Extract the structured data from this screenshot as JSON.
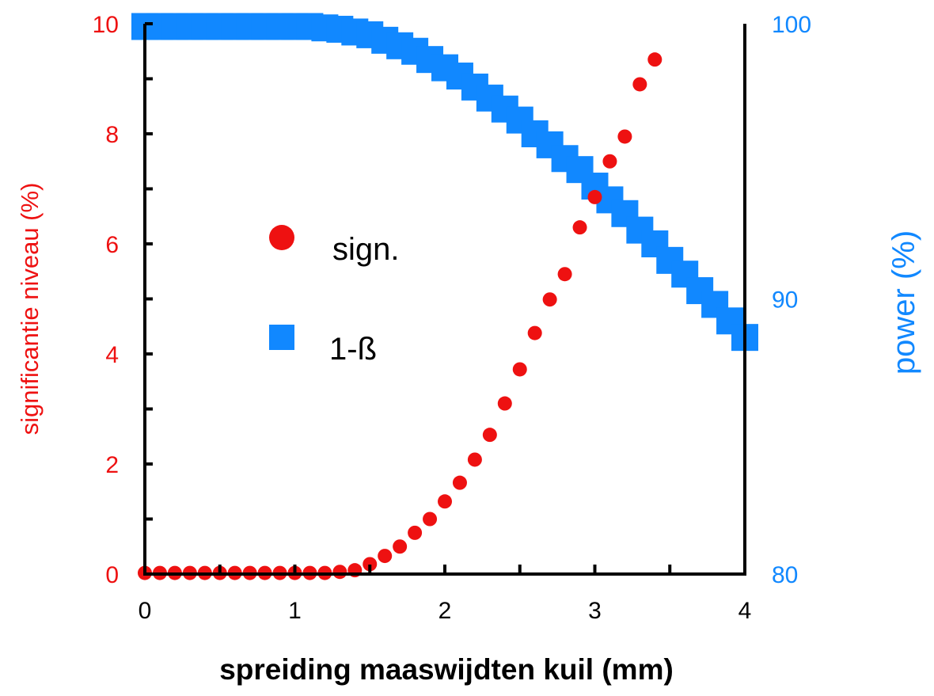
{
  "chart_data": {
    "type": "scatter",
    "xlabel": "spreiding maaswijdten kuil (mm)",
    "ylabel": "significantie niveau (%)",
    "y2label": "power (%)",
    "xlim": [
      0,
      4
    ],
    "ylim": [
      0,
      10
    ],
    "y2lim": [
      80,
      100
    ],
    "x_ticks": [
      "0",
      "1",
      "2",
      "3",
      "4"
    ],
    "y_ticks": [
      "0",
      "2",
      "4",
      "6",
      "8",
      "10"
    ],
    "y2_ticks": [
      "80",
      "90",
      "100"
    ],
    "grid": false,
    "legend_position": "center-left",
    "colors": {
      "sign": "#ee1111",
      "power": "#1188ff",
      "axis": "#000000"
    },
    "series": [
      {
        "name": "sign.",
        "axis": "left",
        "marker": "circle",
        "x": [
          0,
          0.1,
          0.2,
          0.3,
          0.4,
          0.5,
          0.6,
          0.7,
          0.8,
          0.9,
          1.0,
          1.1,
          1.2,
          1.3,
          1.4,
          1.5,
          1.6,
          1.7,
          1.8,
          1.9,
          2.0,
          2.1,
          2.2,
          2.3,
          2.4,
          2.5,
          2.6,
          2.7,
          2.8,
          2.9,
          3.0,
          3.1,
          3.2,
          3.3,
          3.4
        ],
        "values": [
          0.02,
          0.02,
          0.02,
          0.02,
          0.02,
          0.02,
          0.02,
          0.02,
          0.02,
          0.02,
          0.02,
          0.02,
          0.02,
          0.04,
          0.07,
          0.18,
          0.33,
          0.5,
          0.75,
          1.0,
          1.32,
          1.66,
          2.08,
          2.53,
          3.1,
          3.72,
          4.38,
          4.99,
          5.45,
          6.3,
          6.85,
          7.5,
          7.95,
          8.9,
          9.35
        ]
      },
      {
        "name": "1-ß",
        "axis": "right",
        "marker": "square",
        "x": [
          0,
          0.1,
          0.2,
          0.3,
          0.4,
          0.5,
          0.6,
          0.7,
          0.8,
          0.9,
          1.0,
          1.1,
          1.2,
          1.3,
          1.4,
          1.5,
          1.6,
          1.7,
          1.8,
          1.9,
          2.0,
          2.1,
          2.2,
          2.3,
          2.4,
          2.5,
          2.6,
          2.7,
          2.8,
          2.9,
          3.0,
          3.1,
          3.2,
          3.3,
          3.4,
          3.5,
          3.6,
          3.7,
          3.8,
          3.9,
          4.0
        ],
        "values": [
          99.9,
          99.9,
          99.9,
          99.9,
          99.9,
          99.9,
          99.9,
          99.9,
          99.9,
          99.9,
          99.9,
          99.9,
          99.85,
          99.8,
          99.7,
          99.6,
          99.4,
          99.2,
          99.0,
          98.7,
          98.4,
          98.1,
          97.7,
          97.3,
          96.9,
          96.5,
          96.0,
          95.6,
          95.1,
          94.7,
          94.1,
          93.6,
          93.1,
          92.5,
          92.0,
          91.4,
          90.9,
          90.3,
          89.8,
          89.2,
          88.6
        ]
      }
    ]
  }
}
